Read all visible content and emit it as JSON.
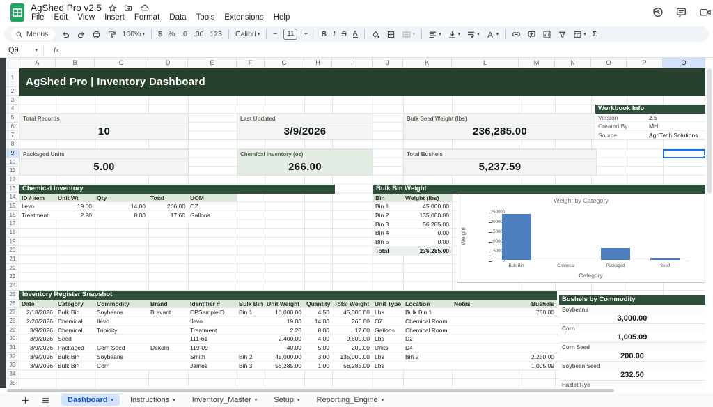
{
  "window": {
    "doc_title": "AgShed Pro v2.5",
    "menu_items": [
      "File",
      "Edit",
      "View",
      "Insert",
      "Format",
      "Data",
      "Tools",
      "Extensions",
      "Help"
    ]
  },
  "toolbar": {
    "menus_label": "Menus",
    "zoom_value": "100%",
    "currency": "$",
    "percent": "%",
    "decimal_decrease": ".0",
    "decimal_increase": ".00",
    "more_formats": "123",
    "font_name": "Calibri",
    "minus": "−",
    "font_size": "11",
    "plus": "+",
    "bold": "B",
    "italic": "I",
    "strikethrough": "S",
    "text_color": "A",
    "functions": "Σ"
  },
  "formula_bar": {
    "cell_reference": "Q9",
    "fx_label": "fx"
  },
  "grid": {
    "columns": [
      "A",
      "B",
      "C",
      "D",
      "E",
      "F",
      "G",
      "H",
      "I",
      "J",
      "K",
      "L",
      "M",
      "N",
      "O",
      "P",
      "Q"
    ],
    "selected_column": "Q",
    "row_count": 35,
    "selected_row": 9
  },
  "banner_title": "AgShed Pro  |  Inventory Dashboard",
  "kpi_cards": [
    {
      "label": "Total Records",
      "value": "10"
    },
    {
      "label": "Last Updated",
      "value": "3/9/2026"
    },
    {
      "label": "Bulk Seed Weight (lbs)",
      "value": "236,285.00"
    },
    {
      "label": "Packaged Units",
      "value": "5.00"
    },
    {
      "label": "Chemical Inventory (oz)",
      "value": "266.00"
    },
    {
      "label": "Total Bushels",
      "value": "5,237.59"
    }
  ],
  "workbook_info": {
    "title": "Workbook Info",
    "rows": [
      [
        "Version",
        "2.5"
      ],
      [
        "Created By",
        "MH"
      ],
      [
        "Source",
        "AgriTech Solutions"
      ]
    ]
  },
  "chemical_inventory": {
    "title": "Chemical Inventory",
    "headers": [
      "ID / Item",
      "Unit Wt",
      "Qty",
      "Total",
      "UOM"
    ],
    "rows": [
      [
        "Ilevo",
        "19.00",
        "14.00",
        "266.00",
        "OZ"
      ],
      [
        "Treatment",
        "2.20",
        "8.00",
        "17.60",
        "Gallons"
      ]
    ]
  },
  "bulk_bin_weight": {
    "title": "Bulk Bin Weight",
    "headers": [
      "Bin",
      "Weight (lbs)"
    ],
    "rows": [
      [
        "Bin 1",
        "45,000.00"
      ],
      [
        "Bin 2",
        "135,000.00"
      ],
      [
        "Bin 3",
        "56,285.00"
      ],
      [
        "Bin 4",
        "0.00"
      ],
      [
        "Bin 5",
        "0.00"
      ]
    ],
    "total_row": [
      "Total",
      "236,285.00"
    ]
  },
  "chart_data": {
    "type": "bar",
    "title": "Weight by Category",
    "categories": [
      "Bulk Bin",
      "Chemical",
      "Packaged",
      "Seed"
    ],
    "values": [
      236285,
      284,
      59000,
      10000
    ],
    "xlabel": "Category",
    "ylabel": "Weight",
    "ylim": [
      0,
      250000
    ],
    "yticks": [
      0,
      50000,
      100000,
      150000,
      200000,
      250000
    ],
    "grid": false,
    "legend": "none",
    "bar_color": "#4d7ebf"
  },
  "register": {
    "title": "Inventory Register Snapshot",
    "headers": [
      "Date",
      "Category",
      "Commodity",
      "Brand",
      "Identifier #",
      "Bulk Bin",
      "Unit Weight",
      "Quantity",
      "Total Weight",
      "Unit Type",
      "Location",
      "Notes",
      "Bushels"
    ],
    "rows": [
      [
        "2/18/2026",
        "Bulk Bin",
        "Soybeans",
        "Brevant",
        "CPSampleID",
        "Bin 1",
        "10,000.00",
        "4.50",
        "45,000.00",
        "Lbs",
        "Bulk Bin 1",
        "",
        "750.00"
      ],
      [
        "2/20/2026",
        "Chemical",
        "Ilevo",
        "",
        "Ilevo",
        "",
        "19.00",
        "14.00",
        "266.00",
        "OZ",
        "Chemical Room",
        "",
        ""
      ],
      [
        "3/9/2026",
        "Chemical",
        "Tripidity",
        "",
        "Treatment",
        "",
        "2.20",
        "8.00",
        "17.60",
        "Gallons",
        "Chemical Room",
        "",
        ""
      ],
      [
        "3/9/2026",
        "Seed",
        "",
        "",
        "111-61",
        "",
        "2,400.00",
        "4.00",
        "9,600.00",
        "Lbs",
        "D2",
        "",
        ""
      ],
      [
        "3/9/2026",
        "Packaged",
        "Corn Seed",
        "Dekalb",
        "119-09",
        "",
        "40.00",
        "5.00",
        "200.00",
        "Units",
        "D4",
        "",
        ""
      ],
      [
        "3/9/2026",
        "Bulk Bin",
        "Soybeans",
        "",
        "Smith",
        "Bin 2",
        "45,000.00",
        "3.00",
        "135,000.00",
        "Lbs",
        "Bin 2",
        "",
        "2,250.00"
      ],
      [
        "3/9/2026",
        "Bulk Bin",
        "Corn",
        "",
        "James",
        "Bin 3",
        "56,285.00",
        "1.00",
        "56,285.00",
        "Lbs",
        "",
        "",
        "1,005.09"
      ]
    ]
  },
  "bushels_by_commodity": {
    "title": "Bushels by Commodity",
    "items": [
      {
        "label": "Soybeans",
        "value": "3,000.00"
      },
      {
        "label": "Corn",
        "value": "1,005.09"
      },
      {
        "label": "Corn Seed",
        "value": "200.00"
      },
      {
        "label": "Soybean Seed",
        "value": "232.50"
      },
      {
        "label": "Hazlet Rye",
        "value": ""
      }
    ]
  },
  "sheet_tabs": {
    "active": "Dashboard",
    "tabs": [
      "Dashboard",
      "Instructions",
      "Inventory_Master",
      "Setup",
      "Reporting_Engine"
    ]
  },
  "colors": {
    "brand_green": "#27402e",
    "section_green": "#2e4f3a",
    "table_header_green": "#dde8dd",
    "kpi_bg": "#f3f5f3",
    "kpi_green_bg": "#e3ece3",
    "selection_blue": "#1a73e8",
    "header_highlight": "#d3e3fd",
    "bar_blue": "#4d7ebf",
    "active_tab_bg": "#d3e3fd",
    "active_tab_text": "#0b57d0"
  }
}
